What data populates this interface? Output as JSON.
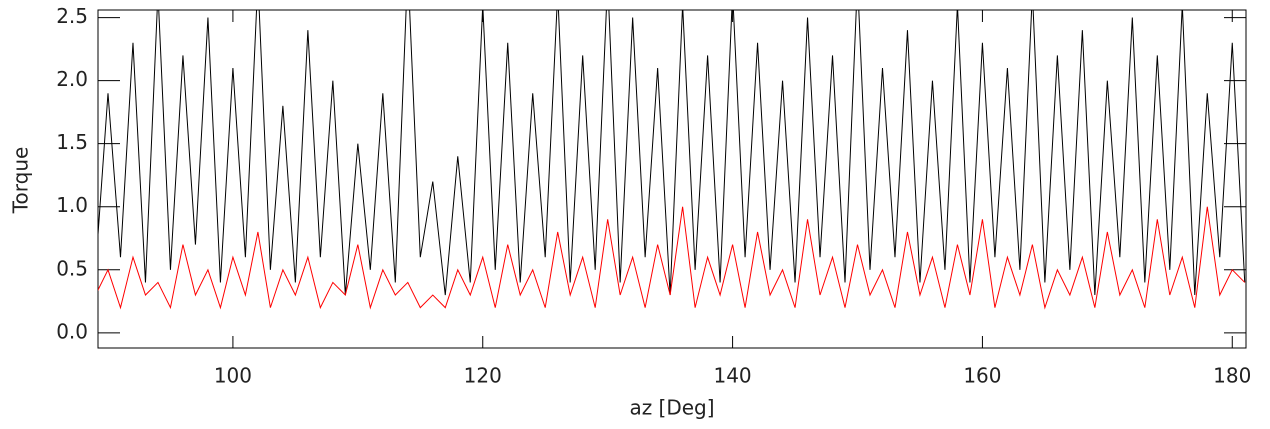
{
  "chart_data": {
    "type": "line",
    "x_label": "az [Deg]",
    "y_label": "Torque",
    "x": [
      89,
      90,
      91,
      92,
      93,
      94,
      95,
      96,
      97,
      98,
      99,
      100,
      101,
      102,
      103,
      104,
      105,
      106,
      107,
      108,
      109,
      110,
      111,
      112,
      113,
      114,
      115,
      116,
      117,
      118,
      119,
      120,
      121,
      122,
      123,
      124,
      125,
      126,
      127,
      128,
      129,
      130,
      131,
      132,
      133,
      134,
      135,
      136,
      137,
      138,
      139,
      140,
      141,
      142,
      143,
      144,
      145,
      146,
      147,
      148,
      149,
      150,
      151,
      152,
      153,
      154,
      155,
      156,
      157,
      158,
      159,
      160,
      161,
      162,
      163,
      164,
      165,
      166,
      167,
      168,
      169,
      170,
      171,
      172,
      173,
      174,
      175,
      176,
      177,
      178,
      179,
      180,
      181
    ],
    "series": [
      {
        "name": null,
        "color": "#000000",
        "values": [
          0.5,
          1.9,
          0.6,
          2.3,
          0.4,
          2.7,
          0.5,
          2.2,
          0.7,
          2.5,
          0.4,
          2.1,
          0.6,
          2.8,
          0.5,
          1.8,
          0.4,
          2.4,
          0.6,
          2.0,
          0.3,
          1.5,
          0.5,
          1.9,
          0.4,
          2.9,
          0.6,
          1.2,
          0.3,
          1.4,
          0.4,
          2.6,
          0.5,
          2.3,
          0.4,
          1.9,
          0.6,
          2.7,
          0.4,
          2.2,
          0.5,
          2.8,
          0.4,
          2.5,
          0.6,
          2.1,
          0.3,
          2.6,
          0.5,
          2.2,
          0.4,
          2.7,
          0.6,
          2.3,
          0.5,
          2.0,
          0.4,
          2.5,
          0.6,
          2.2,
          0.4,
          2.8,
          0.5,
          2.1,
          0.6,
          2.4,
          0.4,
          2.0,
          0.5,
          2.6,
          0.4,
          2.3,
          0.6,
          2.1,
          0.5,
          2.7,
          0.4,
          2.2,
          0.5,
          2.4,
          0.3,
          2.0,
          0.6,
          2.5,
          0.4,
          2.2,
          0.5,
          2.6,
          0.3,
          1.9,
          0.6,
          2.3,
          0.4
        ]
      },
      {
        "name": null,
        "color": "#ff0000",
        "values": [
          0.3,
          0.5,
          0.2,
          0.6,
          0.3,
          0.4,
          0.2,
          0.7,
          0.3,
          0.5,
          0.2,
          0.6,
          0.3,
          0.8,
          0.2,
          0.5,
          0.3,
          0.6,
          0.2,
          0.4,
          0.3,
          0.7,
          0.2,
          0.5,
          0.3,
          0.4,
          0.2,
          0.3,
          0.2,
          0.5,
          0.3,
          0.6,
          0.2,
          0.7,
          0.3,
          0.5,
          0.2,
          0.8,
          0.3,
          0.6,
          0.2,
          0.9,
          0.3,
          0.6,
          0.2,
          0.7,
          0.3,
          1.0,
          0.2,
          0.6,
          0.3,
          0.7,
          0.2,
          0.8,
          0.3,
          0.5,
          0.2,
          0.9,
          0.3,
          0.6,
          0.2,
          0.7,
          0.3,
          0.5,
          0.2,
          0.8,
          0.3,
          0.6,
          0.2,
          0.7,
          0.3,
          0.9,
          0.2,
          0.6,
          0.3,
          0.7,
          0.2,
          0.5,
          0.3,
          0.6,
          0.2,
          0.8,
          0.3,
          0.5,
          0.2,
          0.9,
          0.3,
          0.6,
          0.2,
          1.0,
          0.3,
          0.5,
          0.4
        ]
      }
    ],
    "xlim": [
      89.2,
      181.1
    ],
    "xticks": [
      100,
      120,
      140,
      160,
      180
    ],
    "ylim": [
      -0.12,
      2.56
    ],
    "yticks": [
      {
        "value": 0,
        "label": "0.0"
      },
      0.5,
      {
        "value": 1,
        "label": "1.0"
      },
      1.5,
      {
        "value": 2,
        "label": "2.0"
      },
      2.5
    ]
  }
}
